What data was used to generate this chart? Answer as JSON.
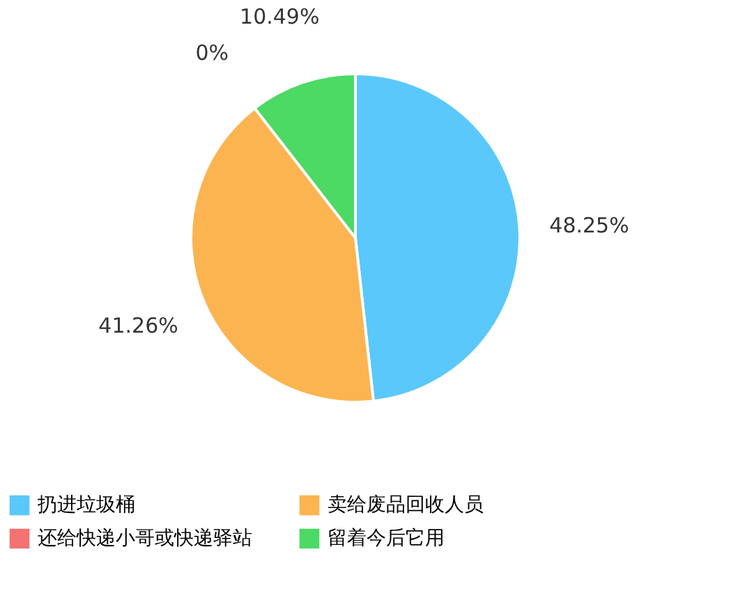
{
  "chart_data": {
    "type": "pie",
    "categories": [
      "扔进垃圾桶",
      "卖给废品回收人员",
      "还给快递小哥或快递驿站",
      "留着今后它用"
    ],
    "values": [
      48.25,
      41.26,
      0,
      10.49
    ],
    "colors": [
      "#5ac8fa",
      "#fbb450",
      "#f47272",
      "#4cd964"
    ],
    "value_labels": [
      "48.25%",
      "41.26%",
      "0%",
      "10.49%"
    ],
    "legend": "bottom"
  }
}
